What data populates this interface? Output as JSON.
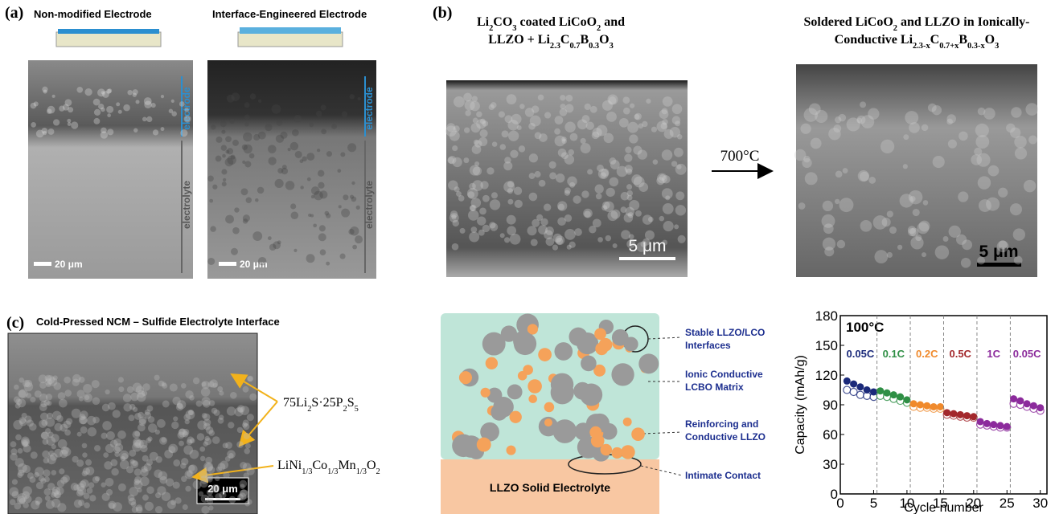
{
  "panel_a": {
    "label": "(a)",
    "left_title": "Non-modified Electrode",
    "right_title": "Interface-Engineered Electrode",
    "electrode": "electrode",
    "electrolyte": "electrolyte",
    "scale": "20 μm"
  },
  "panel_b": {
    "label": "(b)",
    "left_title": [
      [
        "Li",
        "2",
        "CO",
        "3",
        " coated LiCoO",
        "2",
        " and"
      ],
      [
        "LLZO + Li",
        "2.3",
        "C",
        "0.7",
        "B",
        "0.3",
        "O",
        "3"
      ]
    ],
    "arrow_label": "700°C",
    "right_title": [
      [
        "Soldered LiCoO",
        "2",
        " and LLZO in Ionically-"
      ],
      [
        "Conductive Li",
        "2.3-x",
        "C",
        "0.7+x",
        "B",
        "0.3-x",
        "O",
        "3"
      ]
    ],
    "scale": "5 μm"
  },
  "panel_c": {
    "label": "(c)",
    "title": "Cold-Pressed NCM – Sulfide Electrolyte Interface",
    "label_top": [
      "75Li",
      "2",
      "S·25P",
      "2",
      "S",
      "5"
    ],
    "label_bottom": [
      "LiNi",
      "1/3",
      "Co",
      "1/3",
      "Mn",
      "1/3",
      "O",
      "2"
    ],
    "scale": "20 μm"
  },
  "schematic": {
    "callouts": [
      [
        "Stable LLZO/LCO",
        "Interfaces"
      ],
      [
        "Ionic Conductive",
        "LCBO Matrix"
      ],
      [
        "Reinforcing and",
        "Conductive LLZO"
      ],
      [
        "Intimate Contact"
      ]
    ],
    "base": "LLZO Solid Electrolyte"
  },
  "chart_data": {
    "type": "scatter",
    "annotation": "100°C",
    "ylabel": "Capacity (mAh/g)",
    "xlabel": "Cycle number",
    "xlim": [
      0,
      31
    ],
    "xticks": [
      0,
      5,
      10,
      15,
      20,
      25,
      30
    ],
    "ylim": [
      0,
      180
    ],
    "yticks": [
      0,
      30,
      60,
      90,
      120,
      150,
      180
    ],
    "series": [
      {
        "name": "0.05C",
        "color": "#1b2a7a",
        "x": [
          1,
          2,
          3,
          4,
          5
        ],
        "values": [
          114,
          111,
          108,
          105,
          103
        ],
        "values_open": [
          105,
          103,
          100,
          99,
          98
        ]
      },
      {
        "name": "0.1C",
        "color": "#2f8f45",
        "x": [
          6,
          7,
          8,
          9,
          10
        ],
        "values": [
          104,
          102,
          100,
          98,
          95
        ],
        "values_open": [
          99,
          98,
          96,
          94,
          92
        ]
      },
      {
        "name": "0.2C",
        "color": "#f08a2c",
        "x": [
          11,
          12,
          13,
          14,
          15
        ],
        "values": [
          91,
          90,
          89,
          88,
          88
        ],
        "values_open": [
          88,
          87,
          87,
          86,
          86
        ]
      },
      {
        "name": "0.5C",
        "color": "#a3282c",
        "x": [
          16,
          17,
          18,
          19,
          20
        ],
        "values": [
          82,
          81,
          80,
          79,
          78
        ],
        "values_open": [
          80,
          79,
          78,
          77,
          77
        ]
      },
      {
        "name": "1C",
        "color": "#8c2b9c",
        "x": [
          21,
          22,
          23,
          24,
          25
        ],
        "values": [
          73,
          71,
          70,
          69,
          68
        ],
        "values_open": [
          70,
          69,
          68,
          67,
          67
        ]
      },
      {
        "name": "0.05C",
        "color": "#8c2b9c",
        "x": [
          26,
          27,
          28,
          29,
          30
        ],
        "values": [
          96,
          94,
          91,
          89,
          87
        ],
        "values_open": [
          91,
          90,
          88,
          86,
          84
        ]
      }
    ]
  }
}
